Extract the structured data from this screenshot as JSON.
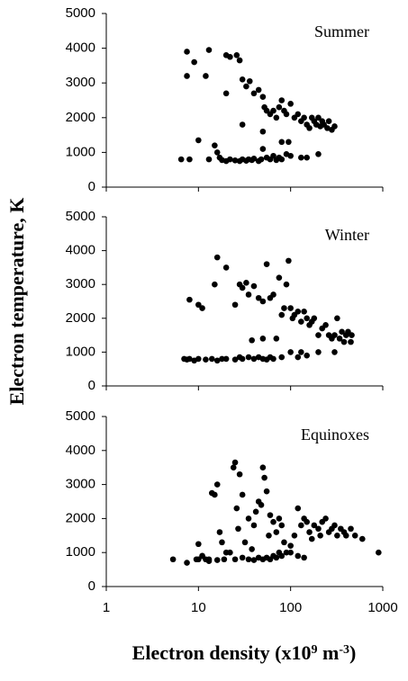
{
  "chart_data": [
    {
      "type": "scatter",
      "title": "Summer",
      "color": "#000000",
      "xlog": true,
      "xlim": [
        1,
        1000
      ],
      "ylim": [
        0,
        5000
      ],
      "yticks": [
        0,
        1000,
        2000,
        3000,
        4000,
        5000
      ],
      "x": [
        7.5,
        7.5,
        9,
        13,
        12,
        20,
        22,
        26,
        28,
        20,
        30,
        33,
        36,
        40,
        45,
        50,
        52,
        55,
        60,
        65,
        70,
        75,
        80,
        85,
        90,
        100,
        110,
        120,
        130,
        140,
        150,
        160,
        170,
        180,
        190,
        200,
        210,
        220,
        230,
        250,
        260,
        280,
        300,
        50,
        80,
        95,
        30,
        10,
        15,
        16,
        6.5,
        8,
        13,
        17,
        18,
        20,
        22,
        25,
        28,
        30,
        33,
        35,
        38,
        40,
        45,
        48,
        50,
        55,
        60,
        65,
        70,
        75,
        80,
        90,
        100,
        130,
        150,
        200
      ],
      "y": [
        3900,
        3200,
        3600,
        3950,
        3200,
        3800,
        3750,
        3800,
        3650,
        2700,
        3100,
        2900,
        3050,
        2700,
        2800,
        2600,
        2300,
        2200,
        2100,
        2200,
        2000,
        2300,
        2500,
        2200,
        2100,
        2400,
        2000,
        2100,
        1900,
        2000,
        1800,
        1700,
        2000,
        1900,
        1800,
        2000,
        1750,
        1900,
        1800,
        1700,
        1900,
        1650,
        1750,
        1600,
        1300,
        1300,
        1800,
        1350,
        1200,
        1000,
        800,
        800,
        800,
        850,
        780,
        750,
        800,
        770,
        750,
        800,
        760,
        800,
        780,
        820,
        750,
        800,
        1100,
        850,
        800,
        900,
        780,
        850,
        800,
        950,
        900,
        850,
        850,
        950
      ]
    },
    {
      "type": "scatter",
      "title": "Winter",
      "y_label": "Electron temperature, K",
      "color": "#000000",
      "xlog": true,
      "xlim": [
        1,
        1000
      ],
      "ylim": [
        0,
        5000
      ],
      "yticks": [
        0,
        1000,
        2000,
        3000,
        4000,
        5000
      ],
      "x": [
        8,
        10,
        11,
        15,
        16,
        20,
        25,
        28,
        30,
        33,
        35,
        40,
        45,
        50,
        55,
        60,
        65,
        75,
        80,
        85,
        90,
        95,
        100,
        105,
        110,
        120,
        130,
        140,
        150,
        160,
        170,
        180,
        200,
        220,
        240,
        260,
        280,
        300,
        320,
        340,
        360,
        380,
        400,
        420,
        450,
        460,
        50,
        70,
        130,
        200,
        7,
        7.5,
        8,
        9,
        10,
        12,
        14,
        16,
        18,
        20,
        25,
        28,
        30,
        35,
        38,
        40,
        45,
        50,
        55,
        60,
        65,
        80,
        100,
        120,
        150,
        300
      ],
      "y": [
        2550,
        2400,
        2300,
        3000,
        3800,
        3500,
        2400,
        3000,
        2900,
        3050,
        2700,
        2950,
        2600,
        2500,
        3600,
        2600,
        2700,
        3200,
        2100,
        2300,
        3000,
        3700,
        2300,
        2000,
        2100,
        2200,
        1900,
        2200,
        2000,
        1800,
        1900,
        2000,
        1500,
        1700,
        1800,
        1500,
        1400,
        1500,
        2000,
        1400,
        1600,
        1300,
        1500,
        1600,
        1300,
        1500,
        1400,
        1400,
        1000,
        1000,
        800,
        780,
        800,
        750,
        800,
        780,
        800,
        750,
        800,
        800,
        780,
        850,
        800,
        850,
        1350,
        800,
        850,
        800,
        780,
        850,
        800,
        850,
        1000,
        850,
        900,
        1000
      ]
    },
    {
      "type": "scatter",
      "title": "Equinoxes",
      "x_label": [
        "Electron density (x10",
        "9",
        " m",
        "-3",
        ")"
      ],
      "color": "#000000",
      "xlog": true,
      "xlim": [
        1,
        1000
      ],
      "ylim": [
        0,
        5000
      ],
      "xticks": [
        1,
        10,
        100,
        1000
      ],
      "yticks": [
        0,
        1000,
        2000,
        3000,
        4000,
        5000
      ],
      "x": [
        5.3,
        7.5,
        9.5,
        10,
        11,
        12,
        13,
        14,
        15,
        16,
        17,
        18,
        20,
        22,
        24,
        25,
        26,
        27,
        28,
        30,
        32,
        35,
        38,
        40,
        42,
        45,
        48,
        50,
        52,
        55,
        58,
        60,
        65,
        70,
        75,
        80,
        85,
        90,
        100,
        110,
        120,
        130,
        140,
        150,
        160,
        170,
        180,
        200,
        210,
        220,
        240,
        260,
        280,
        300,
        320,
        350,
        380,
        400,
        450,
        500,
        600,
        900,
        10,
        11,
        13,
        16,
        19,
        25,
        30,
        35,
        40,
        45,
        50,
        55,
        60,
        65,
        70,
        75,
        80,
        100,
        120,
        140
      ],
      "y": [
        800,
        700,
        800,
        1250,
        900,
        800,
        800,
        2750,
        2700,
        3000,
        1600,
        1300,
        1000,
        1000,
        3500,
        3650,
        2300,
        1700,
        3300,
        2700,
        1300,
        2000,
        1100,
        1800,
        2200,
        2500,
        2400,
        3500,
        3200,
        2800,
        1500,
        2100,
        1900,
        1600,
        2000,
        1800,
        1300,
        1000,
        1200,
        1500,
        2300,
        1800,
        2000,
        1900,
        1600,
        1400,
        1800,
        1700,
        1500,
        1900,
        2000,
        1600,
        1700,
        1800,
        1500,
        1700,
        1600,
        1500,
        1700,
        1500,
        1400,
        1000,
        800,
        900,
        750,
        780,
        800,
        800,
        850,
        800,
        780,
        850,
        800,
        850,
        800,
        900,
        850,
        1000,
        900,
        1000,
        900,
        850
      ]
    }
  ]
}
